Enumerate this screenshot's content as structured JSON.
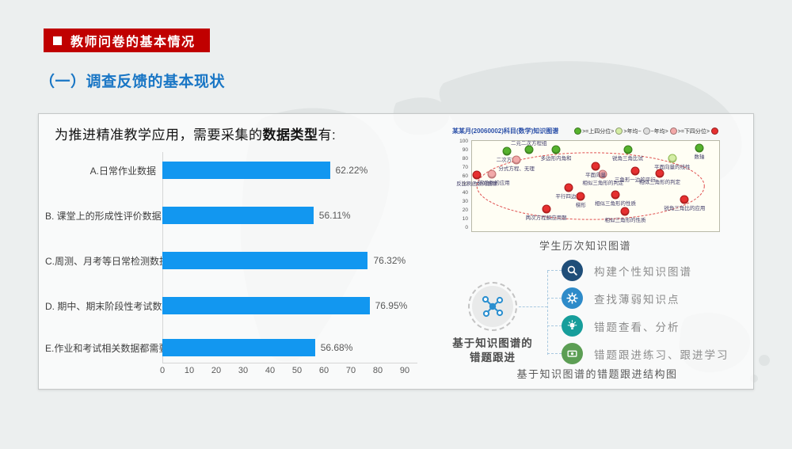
{
  "slide": {
    "header_badge": "教师问卷的基本情况",
    "section_title": "（一）调查反馈的基本现状",
    "intro_prefix": "为推进精准教学应用，需要采集的",
    "intro_bold": "数据类型",
    "intro_suffix": "有:"
  },
  "colors": {
    "badge_red": "#C00000",
    "title_blue": "#1976C5",
    "bar_blue": "#1297F0",
    "background_gray": "#ECEFEF"
  },
  "chart_data": [
    {
      "type": "bar",
      "orientation": "horizontal",
      "categories": [
        "A.日常作业数据",
        "B. 课堂上的形成性评价数据",
        "C.周测、月考等日常检测数据",
        "D. 期中、期末阶段性考试数据",
        "E.作业和考试相关数据都需要"
      ],
      "values": [
        62.22,
        56.11,
        76.32,
        76.95,
        56.68
      ],
      "value_labels": [
        "62.22%",
        "56.11%",
        "76.32%",
        "76.95%",
        "56.68%"
      ],
      "x_ticks": [
        0,
        10,
        20,
        30,
        40,
        50,
        60,
        70,
        80,
        90
      ],
      "xlim": [
        0,
        95
      ],
      "grid": false,
      "bar_color": "#1297F0",
      "legend_position": "none"
    },
    {
      "type": "scatter",
      "title": "某某月(20060002)科目(数学)知识图谱",
      "caption": "学生历次知识图谱",
      "y_ticks": [
        100,
        90,
        80,
        70,
        60,
        50,
        40,
        30,
        20,
        10,
        0
      ],
      "ylim": [
        0,
        100
      ],
      "legend_position": "top-right",
      "legend": [
        {
          "label": ">=上四分位>",
          "level": "green",
          "color": "#56B22D"
        },
        {
          "label": ">年均~",
          "level": "lightgreen",
          "color": "#D4EDA5"
        },
        {
          "label": "~年均>",
          "level": "gray",
          "color": "#DCDCDC"
        },
        {
          "label": ">=下四分位>",
          "level": "pink",
          "color": "#F2A9A9"
        },
        {
          "label": "",
          "level": "red",
          "color": "#E63030"
        }
      ],
      "points": [
        {
          "x": 14,
          "y": 11,
          "level": "green",
          "label": "二次方程"
        },
        {
          "x": 23,
          "y": 10,
          "level": "green",
          "label": "二元二次方程组",
          "label_pos": "above"
        },
        {
          "x": 34,
          "y": 10,
          "level": "green",
          "label": "多边形内角和"
        },
        {
          "x": 63,
          "y": 10,
          "level": "green",
          "label": "锐角三角比试"
        },
        {
          "x": 92,
          "y": 8,
          "level": "green",
          "label": "数轴"
        },
        {
          "x": 81,
          "y": 19,
          "level": "lightgreen",
          "label": "平面向量的线性"
        },
        {
          "x": 18,
          "y": 21,
          "level": "pink",
          "label": "分式方程、无理"
        },
        {
          "x": 8,
          "y": 37,
          "level": "pink",
          "label": "一次函数的应用"
        },
        {
          "x": 53,
          "y": 37,
          "level": "pink",
          "label": "相似三角形的判定"
        },
        {
          "x": 2,
          "y": 38,
          "level": "red",
          "label": "反比例函数的图像"
        },
        {
          "x": 50,
          "y": 28,
          "level": "red",
          "label": "平面向量"
        },
        {
          "x": 66,
          "y": 33,
          "level": "red",
          "label": "三角形一边的平行"
        },
        {
          "x": 76,
          "y": 36,
          "level": "red",
          "label": "相似三角形的判定"
        },
        {
          "x": 39,
          "y": 52,
          "level": "red",
          "label": "平行四边形"
        },
        {
          "x": 44,
          "y": 61,
          "level": "red",
          "label": "梯形"
        },
        {
          "x": 58,
          "y": 60,
          "level": "red",
          "label": "相似三角形的性质"
        },
        {
          "x": 86,
          "y": 65,
          "level": "red",
          "label": "锐角三角比的应用"
        },
        {
          "x": 30,
          "y": 75,
          "level": "red",
          "label": "两次方程解应用题"
        },
        {
          "x": 62,
          "y": 78,
          "level": "red",
          "label": "相似三角形的性质"
        }
      ],
      "ellipse_annotation": {
        "stroke": "#E05050",
        "style": "dashed"
      }
    }
  ],
  "followup": {
    "hub_label_line1": "基于知识图谱的",
    "hub_label_line2": "错题跟进",
    "items": [
      {
        "icon": "search",
        "label": "构建个性知识图谱",
        "color": "#1F4E79"
      },
      {
        "icon": "gear",
        "label": "查找薄弱知识点",
        "color": "#2E8BC9"
      },
      {
        "icon": "bulb",
        "label": "错题查看、分析",
        "color": "#179E9B"
      },
      {
        "icon": "card",
        "label": "错题跟进练习、跟进学习",
        "color": "#5C9E54"
      }
    ],
    "caption": "基于知识图谱的错题跟进结构图"
  }
}
